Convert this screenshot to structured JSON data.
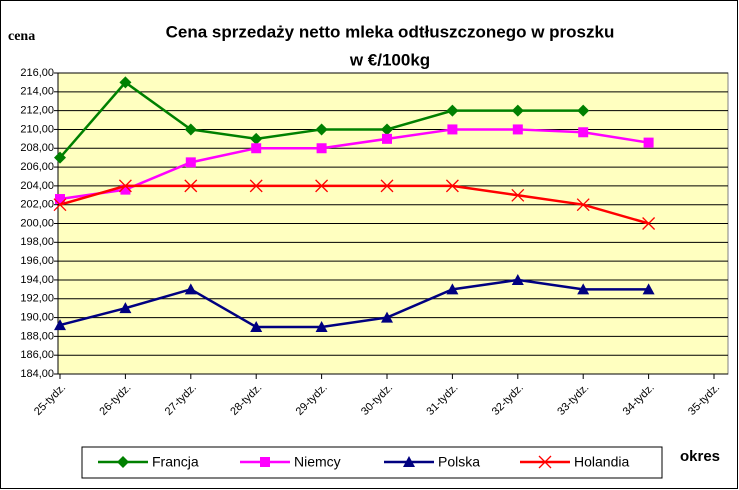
{
  "chart_data": {
    "type": "line",
    "title": "Cena sprzedaży netto mleka odtłuszczonego w proszku",
    "subtitle": "w €/100kg",
    "ylabel": "cena",
    "xlabel": "okres",
    "categories": [
      "25-tydz.",
      "26-tydz.",
      "27-tydz.",
      "28-tydz.",
      "29-tydz.",
      "30-tydz.",
      "31-tydz.",
      "32-tydz.",
      "33-tydz.",
      "34-tydz.",
      "35-tydz."
    ],
    "series": [
      {
        "name": "Francja",
        "color": "#008000",
        "marker": "diamond",
        "values": [
          207,
          215,
          210,
          209,
          210,
          210,
          212,
          212,
          212,
          null,
          null
        ]
      },
      {
        "name": "Niemcy",
        "color": "#ff00ff",
        "marker": "square",
        "values": [
          202.6,
          203.6,
          206.5,
          208,
          208,
          209,
          210,
          210,
          209.7,
          208.6,
          null
        ]
      },
      {
        "name": "Polska",
        "color": "#000080",
        "marker": "triangle",
        "values": [
          189.2,
          191,
          193,
          189,
          189,
          190,
          193,
          194,
          193,
          193,
          null
        ]
      },
      {
        "name": "Holandia",
        "color": "#ff0000",
        "marker": "x",
        "values": [
          202,
          204,
          204,
          204,
          204,
          204,
          204,
          203,
          202,
          200,
          null
        ]
      }
    ],
    "ylim": [
      184,
      216
    ],
    "yticks": [
      {
        "value": 184,
        "label": "184,00"
      },
      {
        "value": 186,
        "label": "186,00"
      },
      {
        "value": 188,
        "label": "188,00"
      },
      {
        "value": 190,
        "label": "190,00"
      },
      {
        "value": 192,
        "label": "192,00"
      },
      {
        "value": 194,
        "label": "194,00"
      },
      {
        "value": 196,
        "label": "196,00"
      },
      {
        "value": 198,
        "label": "198,00"
      },
      {
        "value": 200,
        "label": "200,00"
      },
      {
        "value": 202,
        "label": "202,00"
      },
      {
        "value": 204,
        "label": "204,00"
      },
      {
        "value": 206,
        "label": "206,00"
      },
      {
        "value": 208,
        "label": "208,00"
      },
      {
        "value": 210,
        "label": "210,00"
      },
      {
        "value": 212,
        "label": "212,00"
      },
      {
        "value": 214,
        "label": "214,00"
      },
      {
        "value": 216,
        "label": "216,00"
      }
    ],
    "grid": true,
    "plot_background": "#ffffc0",
    "legend": "bottom"
  }
}
